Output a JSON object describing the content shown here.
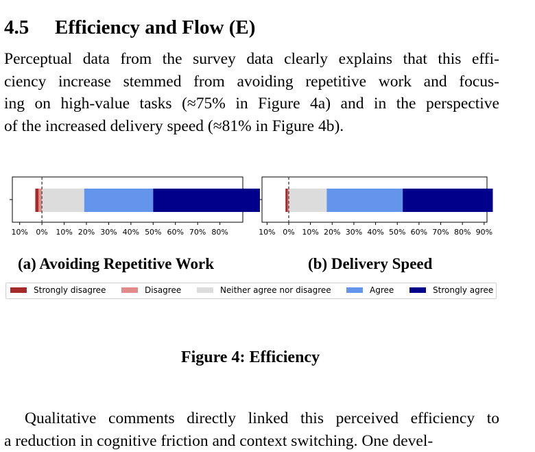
{
  "section": {
    "number": "4.5",
    "title": "Efficiency and Flow (E)"
  },
  "paragraph_lines": [
    "Perceptual data from the survey data clearly explains that this effi-",
    "ciency increase stemmed from avoiding repetitive work and focus-",
    "ing on high-value tasks (≈75% in Figure 4a) and in the perspective",
    "of the increased delivery speed (≈81% in Figure 4b)."
  ],
  "subcaptions": [
    "(a) Avoiding Repetitive Work",
    "(b) Delivery Speed"
  ],
  "legend": [
    {
      "label": "Strongly disagree",
      "color": "#a52a2a"
    },
    {
      "label": "Disagree",
      "color": "#e08a8a"
    },
    {
      "label": "Neither agree nor disagree",
      "color": "#dcdcdc"
    },
    {
      "label": "Agree",
      "color": "#6495ed"
    },
    {
      "label": "Strongly agree",
      "color": "#00008b"
    }
  ],
  "figure_caption": "Figure 4: Efficiency",
  "paragraph2_lines": [
    "Qualitative comments directly linked this perceived efficiency to",
    "a reduction in cognitive friction and context switching. One devel-"
  ],
  "chart_data": [
    {
      "type": "bar",
      "orientation": "horizontal-stacked-diverging",
      "title": "(a) Avoiding Repetitive Work",
      "categories": [
        "Strongly disagree",
        "Disagree",
        "Neither agree nor disagree",
        "Agree",
        "Strongly agree"
      ],
      "values": [
        1.5,
        1.5,
        19,
        31,
        48
      ],
      "tick_labels": [
        "10%",
        "0%",
        "10%",
        "20%",
        "30%",
        "40%",
        "50%",
        "60%",
        "70%",
        "80%"
      ],
      "xlim": [
        -13,
        90
      ],
      "zero_line": "dashed"
    },
    {
      "type": "bar",
      "orientation": "horizontal-stacked-diverging",
      "title": "(b) Delivery Speed",
      "categories": [
        "Strongly disagree",
        "Disagree",
        "Neither agree nor disagree",
        "Agree",
        "Strongly agree"
      ],
      "values": [
        1,
        0.5,
        17.5,
        35,
        41.5
      ],
      "tick_labels": [
        "10%",
        "0%",
        "10%",
        "20%",
        "30%",
        "40%",
        "50%",
        "60%",
        "70%",
        "80%",
        "90%"
      ],
      "xlim": [
        -12,
        91
      ],
      "zero_line": "dashed"
    }
  ]
}
